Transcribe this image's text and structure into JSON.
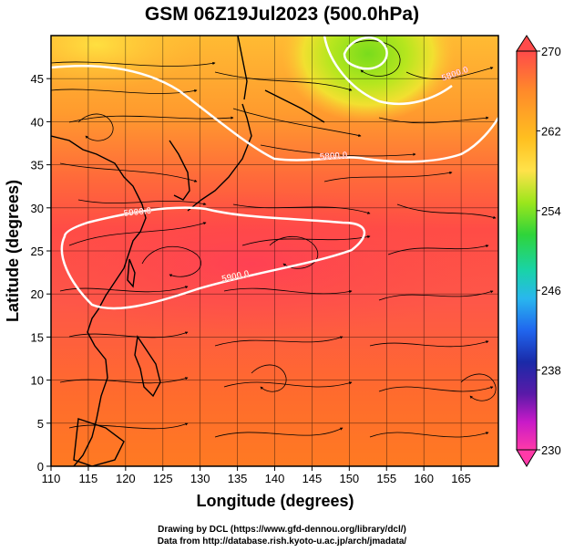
{
  "title": "GSM 06Z19Jul2023 (500.0hPa)",
  "map": {
    "xlabel": "Longitude (degrees)",
    "ylabel": "Latitude  (degrees)",
    "x_ticks": [
      "110",
      "115",
      "120",
      "125",
      "130",
      "135",
      "140",
      "145",
      "150",
      "155",
      "160",
      "165"
    ],
    "y_ticks": [
      "0",
      "5",
      "10",
      "15",
      "20",
      "25",
      "30",
      "35",
      "40",
      "45"
    ],
    "lon_range": [
      110,
      170
    ],
    "lat_range": [
      0,
      50
    ],
    "contour_labels": [
      "5900.0",
      "5900.0",
      "5800.0",
      "5800.0"
    ]
  },
  "colorbar": {
    "ticks": [
      "270",
      "262",
      "254",
      "246",
      "238",
      "230"
    ],
    "range": [
      230,
      270
    ],
    "colors": [
      "#ff4a4a",
      "#ff8a2a",
      "#ffc020",
      "#ffe24a",
      "#9be61c",
      "#2fd43a",
      "#19d3a8",
      "#29b7ee",
      "#2066ee",
      "#1a2aa8",
      "#5a1aa8",
      "#c81ac8",
      "#ff3aa8"
    ]
  },
  "credits": {
    "line1": "Drawing by DCL (https://www.gfd-dennou.org/library/dcl/)",
    "line2": "Data from http://database.rish.kyoto-u.ac.jp/arch/jmadata/"
  }
}
